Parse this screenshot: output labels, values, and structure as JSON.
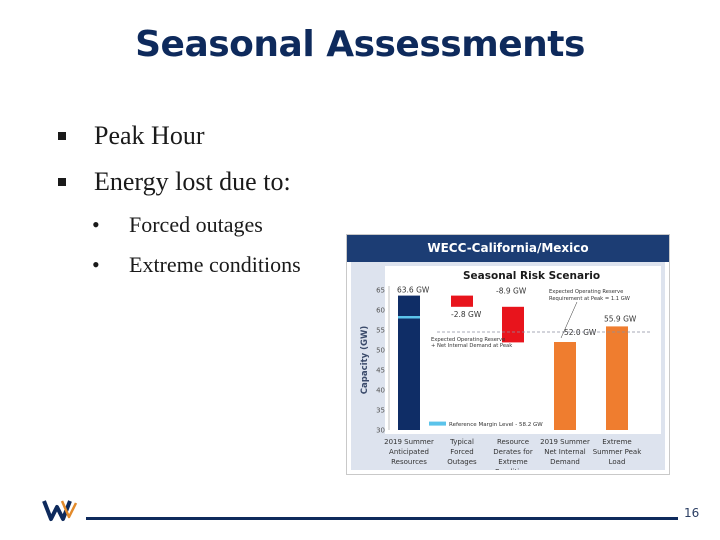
{
  "title": "Seasonal Assessments",
  "bullets": [
    {
      "text": "Peak Hour",
      "sub": []
    },
    {
      "text": "Energy lost due to:",
      "sub": [
        "Forced outages",
        "Extreme conditions"
      ]
    }
  ],
  "figure": {
    "header": "WECC-California/Mexico"
  },
  "chart_data": {
    "type": "bar",
    "title": "Seasonal Risk Scenario",
    "ylabel": "Capacity (GW)",
    "ylim": [
      30,
      65
    ],
    "yticks": [
      "65",
      "60",
      "55",
      "50",
      "45",
      "40",
      "35",
      "30"
    ],
    "categories": [
      "2019 Summer Anticipated Resources",
      "Typical Forced Outages",
      "Resource Derates for Extreme Conditions",
      "2019 Summer Net Internal Demand",
      "Extreme Summer Peak Load"
    ],
    "category_lines": [
      [
        "2019 Summer",
        "Anticipated",
        "Resources"
      ],
      [
        "Typical",
        "Forced",
        "Outages"
      ],
      [
        "Resource",
        "Derates for",
        "Extreme",
        "Conditions"
      ],
      [
        "2019 Summer",
        "Net Internal",
        "Demand"
      ],
      [
        "Extreme",
        "Summer Peak",
        "Load"
      ]
    ],
    "bars": [
      {
        "start": 30,
        "end": 63.6,
        "label": "63.6 GW",
        "color": "#0f2d66"
      },
      {
        "start": 63.6,
        "end": 60.8,
        "label": "-2.8 GW",
        "color": "#e8141c"
      },
      {
        "start": 60.8,
        "end": 51.9,
        "label": "-8.9 GW",
        "color": "#e8141c"
      },
      {
        "start": 30,
        "end": 52.0,
        "label": "52.0 GW",
        "color": "#ef7d2f"
      },
      {
        "start": 30,
        "end": 55.9,
        "label": "55.9 GW",
        "color": "#ef7d2f"
      }
    ],
    "reference_margin": {
      "value": 58.2,
      "label": "Reference Margin Level - 58.2 GW",
      "color": "#5bc3ea"
    },
    "expected_operating_reserve_level": 54.5,
    "annotations": {
      "expected_reserve_requirement": [
        "Expected Operating Reserve",
        "Requirement at Peak = 1.1 GW"
      ],
      "expected_reserve_plus_demand": [
        "Expected Operating Reserve",
        "+ Net Internal Demand at Peak"
      ]
    }
  },
  "footer": {
    "page_number": "16"
  }
}
